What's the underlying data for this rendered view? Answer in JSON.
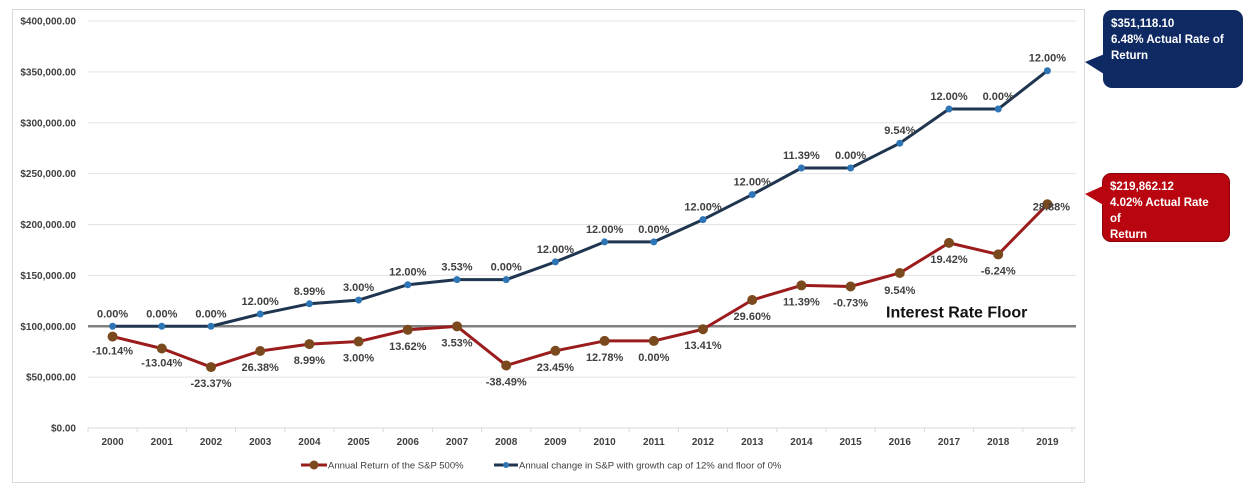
{
  "chart_data": {
    "type": "line",
    "title": "",
    "xlabel": "",
    "ylabel": "",
    "categories": [
      "2000",
      "2001",
      "2002",
      "2003",
      "2004",
      "2005",
      "2006",
      "2007",
      "2008",
      "2009",
      "2010",
      "2011",
      "2012",
      "2013",
      "2014",
      "2015",
      "2016",
      "2017",
      "2018",
      "2019"
    ],
    "ylim": [
      0,
      400000
    ],
    "yticks": [
      0,
      50000,
      100000,
      150000,
      200000,
      250000,
      300000,
      350000,
      400000
    ],
    "ytick_labels": [
      "$0.00",
      "$50,000.00",
      "$100,000.00",
      "$150,000.00",
      "$200,000.00",
      "$250,000.00",
      "$300,000.00",
      "$350,000.00",
      "$400,000.00"
    ],
    "grid": true,
    "legend_position": "bottom",
    "series": [
      {
        "name": "Annual Return of the S&P 500%",
        "color": "#9b1c1c",
        "marker_color": "#7a4a1e",
        "values": [
          89860,
          78142,
          59880,
          75676,
          82479,
          84954,
          96524,
          99931,
          61468,
          75882,
          85580,
          85580,
          97056,
          125784,
          140111,
          139088,
          152357,
          181945,
          170592,
          219862
        ],
        "data_labels": [
          "-10.14%",
          "-13.04%",
          "-23.37%",
          "26.38%",
          "8.99%",
          "3.00%",
          "13.62%",
          "3.53%",
          "-38.49%",
          "23.45%",
          "12.78%",
          "0.00%",
          "13.41%",
          "29.60%",
          "11.39%",
          "-0.73%",
          "9.54%",
          "19.42%",
          "-6.24%",
          "28.88%"
        ]
      },
      {
        "name": "Annual change in S&P with growth cap of 12% and floor of 0%",
        "color": "#1f3550",
        "marker_color": "#2e75b6",
        "values": [
          100000,
          100000,
          100000,
          112000,
          122069,
          125731,
          140819,
          145790,
          145790,
          163284,
          182879,
          182879,
          204824,
          229403,
          255532,
          255532,
          279910,
          313499,
          313499,
          351118
        ],
        "data_labels": [
          "0.00%",
          "0.00%",
          "0.00%",
          "12.00%",
          "8.99%",
          "3.00%",
          "12.00%",
          "3.53%",
          "0.00%",
          "12.00%",
          "12.00%",
          "0.00%",
          "12.00%",
          "12.00%",
          "11.39%",
          "0.00%",
          "9.54%",
          "12.00%",
          "0.00%",
          "12.00%"
        ]
      }
    ],
    "reference_line": {
      "value": 100000,
      "label": "Interest Rate Floor",
      "color": "#7f7f7f"
    },
    "annotations": [
      {
        "series": "capped",
        "line1": "$351,118.10",
        "line2": "6.48% Actual Rate of",
        "line3": "Return",
        "color": "#0f2a63"
      },
      {
        "series": "sp500",
        "line1": "$219,862.12",
        "line2": "4.02% Actual Rate of",
        "line3": "Return",
        "color": "#b8050f"
      }
    ]
  }
}
